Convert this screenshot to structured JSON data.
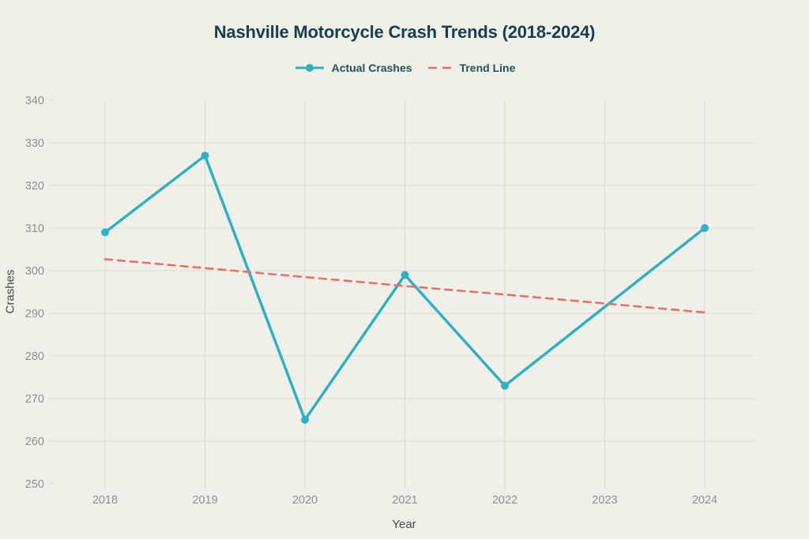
{
  "chart_data": {
    "type": "line",
    "title": "Nashville Motorcycle Crash Trends (2018-2024)",
    "xlabel": "Year",
    "ylabel": "Crashes",
    "categories": [
      "2018",
      "2019",
      "2020",
      "2021",
      "2022",
      "2023",
      "2024"
    ],
    "series": [
      {
        "name": "Actual Crashes",
        "color": "#2fb1c4",
        "style": "solid",
        "marker": "circle",
        "values": [
          309,
          327,
          265,
          299,
          273,
          null,
          310
        ]
      },
      {
        "name": "Trend Line",
        "color": "#e5726a",
        "style": "dashed",
        "marker": "none",
        "values": [
          302.7,
          300.6,
          298.5,
          296.4,
          294.4,
          292.3,
          290.2
        ]
      }
    ],
    "ylim": [
      250,
      340
    ],
    "yticks": [
      250,
      260,
      270,
      280,
      290,
      300,
      310,
      320,
      330,
      340
    ],
    "grid": true,
    "legend_position": "top-center"
  },
  "colors": {
    "background": "#f0f0e9",
    "gridline": "#dcded6",
    "tick_label": "#8f928c",
    "axis_title": "#3d4b4a",
    "title_text": "#17414a",
    "legend_text": "#21525a"
  }
}
